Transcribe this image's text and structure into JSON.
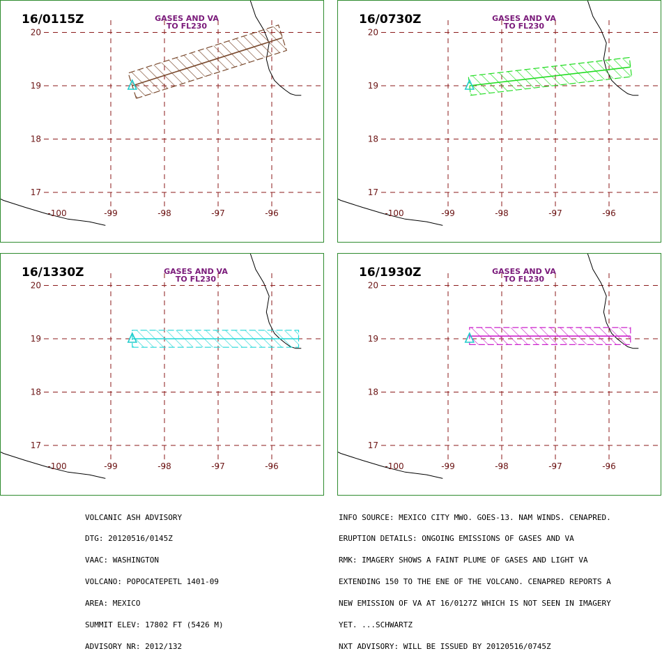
{
  "panels": [
    {
      "time": "16/0115Z",
      "note_l1": "GASES AND  VA",
      "note_l2": "TO FL230",
      "color": "#7a4a2e",
      "plume": {
        "start": [
          -98.6,
          19.0
        ],
        "end": [
          -95.8,
          19.9
        ],
        "halfwidth_deg": 0.25
      }
    },
    {
      "time": "16/0730Z",
      "note_l1": "GASES AND  VA",
      "note_l2": "TO FL230",
      "color": "#22dd22",
      "plume": {
        "start": [
          -98.6,
          19.0
        ],
        "end": [
          -95.6,
          19.35
        ],
        "halfwidth_deg": 0.18
      }
    },
    {
      "time": "16/1330Z",
      "note_l1": "GASES AND  VA",
      "note_l2": "TO FL230",
      "color": "#22d8d8",
      "plume": {
        "start": [
          -98.6,
          19.0
        ],
        "end": [
          -95.5,
          19.0
        ],
        "halfwidth_deg": 0.16
      }
    },
    {
      "time": "16/1930Z",
      "note_l1": "GASES AND  VA",
      "note_l2": "TO FL230",
      "color": "#cc22cc",
      "plume": {
        "start": [
          -98.6,
          19.05
        ],
        "end": [
          -95.6,
          19.05
        ],
        "halfwidth_deg": 0.16
      }
    }
  ],
  "axes": {
    "lon_ticks": [
      -100,
      -99,
      -98,
      -97,
      -96
    ],
    "lon_labels": [
      "-100",
      "-99",
      "-98",
      "-97",
      "-96"
    ],
    "lat_ticks": [
      20,
      19,
      18,
      17
    ],
    "lat_labels": [
      "20",
      "19",
      "18",
      "17"
    ]
  },
  "advisory_left": [
    "VOLCANIC ASH ADVISORY",
    "DTG: 20120516/0145Z",
    "VAAC: WASHINGTON",
    "VOLCANO: POPOCATEPETL 1401-09",
    "AREA: MEXICO",
    "SUMMIT ELEV: 17802 FT (5426 M)",
    "ADVISORY NR: 2012/132"
  ],
  "advisory_right": [
    "INFO SOURCE: MEXICO CITY MWO. GOES-13. NAM WINDS. CENAPRED.",
    "ERUPTION DETAILS: ONGOING EMISSIONS OF GASES AND VA",
    "RMK: IMAGERY SHOWS A FAINT PLUME OF GASES AND LIGHT VA",
    "EXTENDING 150 TO THE ENE OF THE VOLCANO. CENAPRED REPORTS A",
    "NEW EMISSION OF VA AT 16/0127Z WHICH IS NOT SEEN IN IMAGERY",
    "YET. ...SCHWARTZ",
    "NXT ADVISORY: WILL BE ISSUED BY 20120516/0745Z"
  ],
  "colors": {
    "grid": "#8b1a1a",
    "frame": "#2e8b2e",
    "volcano": "#22cccc",
    "note": "#7a1a7a"
  }
}
